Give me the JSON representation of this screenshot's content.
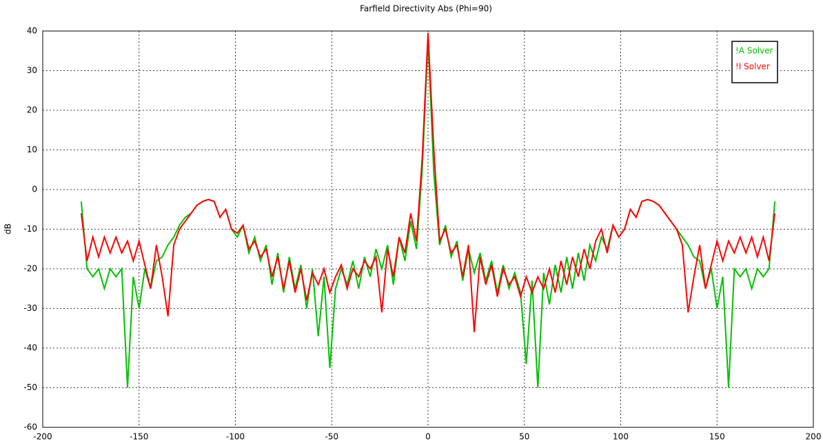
{
  "chart_data": {
    "type": "line",
    "title": "Farfield Directivity Abs (Phi=90)",
    "y_label": "dB",
    "x": [
      -180,
      -177,
      -174,
      -171,
      -168,
      -165,
      -162,
      -159,
      -156,
      -153,
      -150,
      -147,
      -144,
      -141,
      -138,
      -135,
      -132,
      -129,
      -126,
      -123,
      -120,
      -117,
      -114,
      -111,
      -108,
      -105,
      -102,
      -99,
      -96,
      -93,
      -90,
      -87,
      -84,
      -81,
      -78,
      -75,
      -72,
      -69,
      -66,
      -63,
      -60,
      -57,
      -54,
      -51,
      -48,
      -45,
      -42,
      -39,
      -36,
      -33,
      -30,
      -27,
      -24,
      -21,
      -18,
      -15,
      -12,
      -9,
      -6,
      -3,
      0,
      3,
      6,
      9,
      12,
      15,
      18,
      21,
      24,
      27,
      30,
      33,
      36,
      39,
      42,
      45,
      48,
      51,
      54,
      57,
      60,
      63,
      66,
      69,
      72,
      75,
      78,
      81,
      84,
      87,
      90,
      93,
      96,
      99,
      102,
      105,
      108,
      111,
      114,
      117,
      120,
      123,
      126,
      129,
      132,
      135,
      138,
      141,
      144,
      147,
      150,
      153,
      156,
      159,
      162,
      165,
      168,
      171,
      174,
      177,
      180
    ],
    "series": [
      {
        "name": "!A Solver",
        "color": "#00c000",
        "values": [
          -3,
          -20,
          -22,
          -20,
          -25,
          -20,
          -22,
          -20,
          -50,
          -22,
          -30,
          -20,
          -25,
          -18,
          -17,
          -14,
          -12,
          -9,
          -7,
          -6,
          -4,
          -3,
          -2.5,
          -3,
          -7,
          -5,
          -10,
          -12,
          -9,
          -16,
          -12,
          -18,
          -14,
          -24,
          -16,
          -26,
          -17,
          -25,
          -19,
          -30,
          -20,
          -37,
          -22,
          -45,
          -25,
          -20,
          -24,
          -18,
          -25,
          -17,
          -22,
          -15,
          -20,
          -14,
          -24,
          -12,
          -18,
          -8,
          -15,
          5,
          38,
          4,
          -14,
          -9,
          -17,
          -13,
          -23,
          -15,
          -21,
          -16,
          -23,
          -18,
          -26,
          -19,
          -25,
          -21,
          -26,
          -44,
          -23,
          -50,
          -21,
          -29,
          -19,
          -26,
          -17,
          -25,
          -16,
          -23,
          -14,
          -18,
          -12,
          -15,
          -9,
          -12,
          -10,
          -5,
          -7,
          -3,
          -2.5,
          -3,
          -4,
          -6,
          -8,
          -10,
          -12,
          -14,
          -17,
          -18,
          -25,
          -20,
          -30,
          -22,
          -50,
          -20,
          -22,
          -20,
          -25,
          -20,
          -22,
          -20,
          -3
        ]
      },
      {
        "name": "!I Solver",
        "color": "#ff0000",
        "values": [
          -6,
          -18,
          -12,
          -17,
          -12,
          -16,
          -12,
          -16,
          -13,
          -18,
          -13,
          -19,
          -25,
          -14,
          -22,
          -32,
          -14,
          -10,
          -8,
          -6,
          -4,
          -3,
          -2.5,
          -3,
          -7,
          -5,
          -10,
          -11,
          -9,
          -15,
          -13,
          -17,
          -15,
          -22,
          -17,
          -25,
          -18,
          -26,
          -20,
          -28,
          -21,
          -24,
          -20,
          -26,
          -22,
          -19,
          -25,
          -20,
          -22,
          -18,
          -20,
          -17,
          -31,
          -15,
          -22,
          -12,
          -16,
          -6,
          -13,
          8,
          39.5,
          10,
          -13,
          -10,
          -16,
          -14,
          -22,
          -14,
          -36,
          -17,
          -24,
          -19,
          -27,
          -20,
          -24,
          -22,
          -27,
          -22,
          -26,
          -22,
          -25,
          -20,
          -26,
          -18,
          -24,
          -17,
          -22,
          -15,
          -20,
          -13,
          -10,
          -16,
          -9,
          -12,
          -10,
          -5,
          -7,
          -3,
          -2.5,
          -3,
          -4,
          -6,
          -8,
          -10,
          -14,
          -31,
          -22,
          -14,
          -25,
          -19,
          -13,
          -18,
          -13,
          -16,
          -12,
          -16,
          -12,
          -17,
          -12,
          -18,
          -6
        ]
      }
    ],
    "xlim": [
      -200,
      200
    ],
    "xticks": [
      -200,
      -150,
      -100,
      -50,
      0,
      50,
      100,
      150,
      200
    ],
    "ylim": [
      -60,
      40
    ],
    "yticks": [
      -60,
      -50,
      -40,
      -30,
      -20,
      -10,
      0,
      10,
      20,
      30,
      40
    ],
    "grid": true,
    "legend": "upper right"
  }
}
